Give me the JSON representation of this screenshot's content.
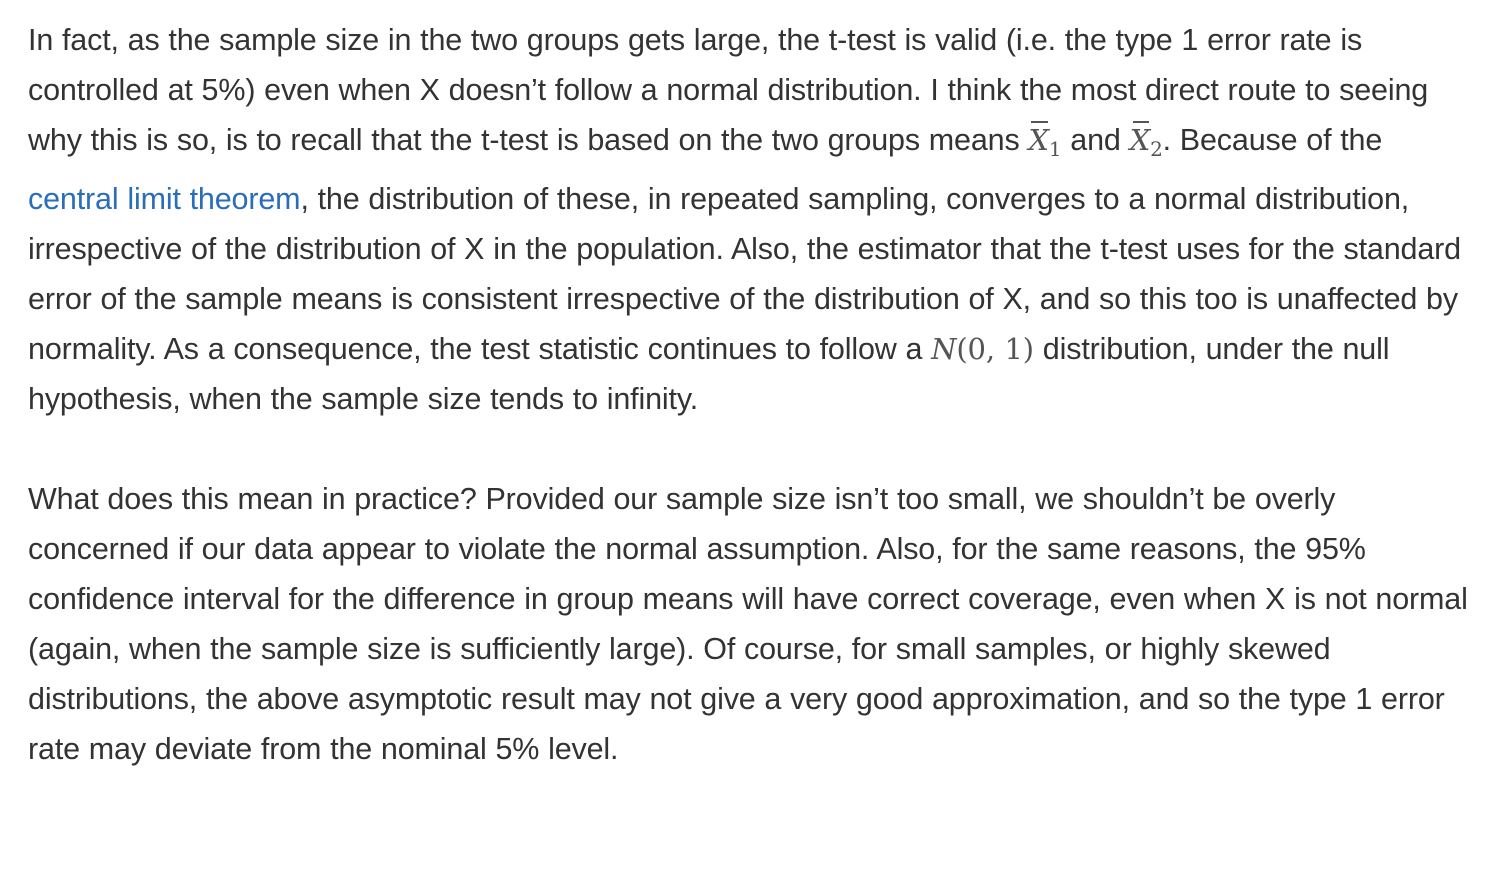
{
  "article": {
    "p1": {
      "t1": "In fact, as the sample size in the two groups gets large, the t-test is valid (i.e. the type 1 error rate is controlled at 5%) even when X doesn’t follow a normal distribution. I think the most direct route to seeing why this is so, is to recall that the t-test is based on the two groups means ",
      "m1_var": "X",
      "m1_sub": "1",
      "t2": " and ",
      "m2_var": "X",
      "m2_sub": "2",
      "t3": ". Because of the ",
      "link": "central limit theorem",
      "t4": ", the distribution of these, in repeated sampling, converges to a normal distribution, irrespective of the distribution of X in the population. Also, the estimator that the t-test uses for the standard error of the sample means is consistent irrespective of the distribution of X, and so this too is unaffected by normality. As a consequence, the test statistic continues to follow a ",
      "m3_var": "N",
      "m3_args": "(0, 1)",
      "t5": " distribution, under the null hypothesis, when the sample size tends to infinity."
    },
    "p2": "What does this mean in practice? Provided our sample size isn’t too small, we shouldn’t be overly concerned if our data appear to violate the normal assumption. Also, for the same reasons, the 95% confidence interval for the difference in group means will have correct coverage, even when X is not normal (again, when the sample size is sufficiently large). Of course, for small samples, or highly skewed distributions, the above asymptotic result may not give a very good approximation, and so the type 1 error rate may deviate from the nominal 5% level.",
    "colors": {
      "text": "#333333",
      "link": "#2a6ebb",
      "math": "#555555"
    }
  }
}
